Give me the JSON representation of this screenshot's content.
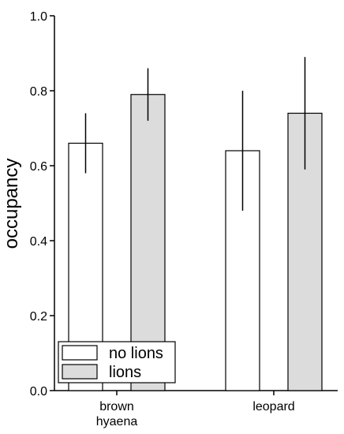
{
  "chart_data": {
    "type": "bar",
    "categories": [
      "brown\nhyaena",
      "leopard"
    ],
    "series": [
      {
        "name": "no lions",
        "color": "#ffffff",
        "values": [
          0.66,
          0.64
        ],
        "err_low": [
          0.58,
          0.48
        ],
        "err_high": [
          0.74,
          0.8
        ]
      },
      {
        "name": "lions",
        "color": "#dcdcdc",
        "values": [
          0.79,
          0.74
        ],
        "err_low": [
          0.72,
          0.59
        ],
        "err_high": [
          0.86,
          0.89
        ]
      }
    ],
    "ylabel": "occupancy",
    "xlabel": "",
    "ylim": [
      0.0,
      1.0
    ],
    "yticks": [
      "0.0",
      "0.2",
      "0.4",
      "0.6",
      "0.8",
      "1.0"
    ],
    "legend_position": "bottom-left",
    "grid": false
  }
}
